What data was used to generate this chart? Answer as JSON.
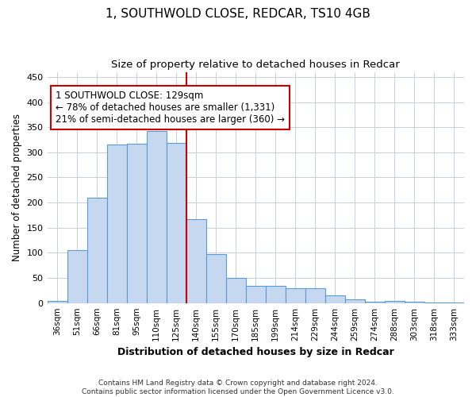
{
  "title": "1, SOUTHWOLD CLOSE, REDCAR, TS10 4GB",
  "subtitle": "Size of property relative to detached houses in Redcar",
  "xlabel": "Distribution of detached houses by size in Redcar",
  "ylabel": "Number of detached properties",
  "categories": [
    "36sqm",
    "51sqm",
    "66sqm",
    "81sqm",
    "95sqm",
    "110sqm",
    "125sqm",
    "140sqm",
    "155sqm",
    "170sqm",
    "185sqm",
    "199sqm",
    "214sqm",
    "229sqm",
    "244sqm",
    "259sqm",
    "274sqm",
    "288sqm",
    "303sqm",
    "318sqm",
    "333sqm"
  ],
  "values": [
    5,
    106,
    210,
    315,
    317,
    343,
    318,
    167,
    97,
    50,
    35,
    35,
    29,
    29,
    15,
    8,
    3,
    5,
    2,
    1,
    1
  ],
  "bar_color": "#c5d8f0",
  "bar_edge_color": "#5b9bd5",
  "vline_x_index": 6.5,
  "vline_color": "#cc0000",
  "annotation_line1": "1 SOUTHWOLD CLOSE: 129sqm",
  "annotation_line2": "← 78% of detached houses are smaller (1,331)",
  "annotation_line3": "21% of semi-detached houses are larger (360) →",
  "annotation_box_color": "white",
  "annotation_box_edge_color": "#cc0000",
  "ylim": [
    0,
    460
  ],
  "yticks": [
    0,
    50,
    100,
    150,
    200,
    250,
    300,
    350,
    400,
    450
  ],
  "footer": "Contains HM Land Registry data © Crown copyright and database right 2024.\nContains public sector information licensed under the Open Government Licence v3.0.",
  "background_color": "white",
  "plot_background": "white",
  "grid_color": "#c8d0e0"
}
